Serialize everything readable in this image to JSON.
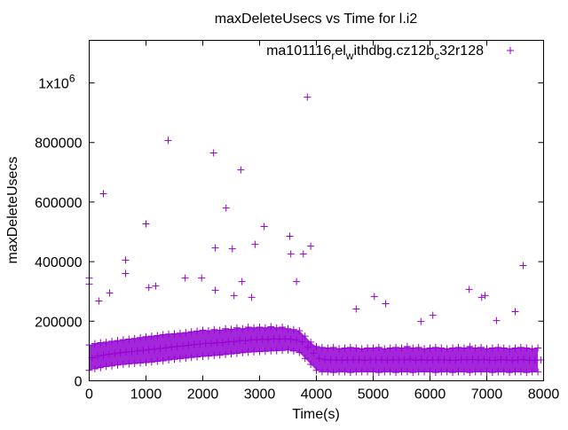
{
  "chart_data": {
    "type": "scatter",
    "title": "maxDeleteUsecs vs Time for l.i2",
    "xlabel": "Time(s)",
    "ylabel": "maxDeleteUsecs",
    "xlim": [
      0,
      8000
    ],
    "ylim": [
      0,
      1143000
    ],
    "grid": false,
    "legend_placement": "top-right",
    "color": "#9400d3",
    "x_ticks": [
      {
        "value": 0,
        "label": "0"
      },
      {
        "value": 1000,
        "label": "1000"
      },
      {
        "value": 2000,
        "label": "2000"
      },
      {
        "value": 3000,
        "label": "3000"
      },
      {
        "value": 4000,
        "label": "4000"
      },
      {
        "value": 5000,
        "label": "5000"
      },
      {
        "value": 6000,
        "label": "6000"
      },
      {
        "value": 7000,
        "label": "7000"
      },
      {
        "value": 8000,
        "label": "8000"
      }
    ],
    "y_ticks": [
      {
        "value": 0,
        "label": "0"
      },
      {
        "value": 200000,
        "label": "200000"
      },
      {
        "value": 400000,
        "label": "400000"
      },
      {
        "value": 600000,
        "label": "600000"
      },
      {
        "value": 800000,
        "label": "800000"
      },
      {
        "value": 1000000,
        "label": "1x10",
        "sup": "6"
      }
    ],
    "series": [
      {
        "name": "ma101116_rel_withdbg.cz12b_c32r128",
        "legend_parts": [
          {
            "text": "ma101116",
            "sub": false
          },
          {
            "text": "r",
            "sub": true
          },
          {
            "text": "el",
            "sub": false
          },
          {
            "text": "w",
            "sub": true
          },
          {
            "text": "ithdbg.cz12b",
            "sub": false
          },
          {
            "text": "c",
            "sub": true
          },
          {
            "text": "32r128",
            "sub": false
          }
        ],
        "band": {
          "x_start": 0,
          "x_step": 100,
          "low_k": [
            35,
            40,
            44,
            48,
            50,
            53,
            55,
            57,
            58,
            60,
            61,
            63,
            65,
            67,
            70,
            72,
            74,
            76,
            78,
            80,
            82,
            83,
            85,
            86,
            88,
            90,
            92,
            94,
            96,
            97,
            98,
            99,
            100,
            101,
            102,
            103,
            100,
            95,
            75,
            55,
            35,
            30,
            30,
            28,
            30,
            30,
            28,
            30,
            30,
            30,
            30,
            28,
            30,
            30,
            28,
            30,
            30,
            28,
            30,
            30,
            30,
            28,
            30,
            30,
            28,
            30,
            30,
            28,
            30,
            30,
            30,
            28,
            30,
            30,
            28,
            30,
            30,
            28,
            30,
            30
          ],
          "high_k": [
            120,
            125,
            128,
            130,
            133,
            135,
            138,
            140,
            142,
            145,
            148,
            150,
            152,
            155,
            157,
            158,
            160,
            162,
            165,
            167,
            170,
            168,
            172,
            170,
            175,
            173,
            178,
            175,
            180,
            178,
            180,
            178,
            182,
            178,
            180,
            175,
            172,
            168,
            150,
            130,
            115,
            112,
            110,
            112,
            108,
            110,
            112,
            110,
            108,
            110,
            110,
            112,
            108,
            110,
            112,
            110,
            115,
            110,
            112,
            108,
            110,
            112,
            110,
            108,
            110,
            112,
            110,
            115,
            110,
            112,
            108,
            110,
            112,
            110,
            108,
            110,
            112,
            110,
            108,
            110
          ]
        },
        "outliers": [
          [
            0,
            345000
          ],
          [
            0,
            325000
          ],
          [
            170,
            268000
          ],
          [
            250,
            628000
          ],
          [
            360,
            295000
          ],
          [
            640,
            405000
          ],
          [
            640,
            360000
          ],
          [
            1000,
            527000
          ],
          [
            1050,
            313000
          ],
          [
            1170,
            318000
          ],
          [
            1390,
            807000
          ],
          [
            1690,
            345000
          ],
          [
            1980,
            345000
          ],
          [
            2190,
            765000
          ],
          [
            2220,
            446000
          ],
          [
            2220,
            304000
          ],
          [
            2410,
            580000
          ],
          [
            2520,
            443000
          ],
          [
            2550,
            286000
          ],
          [
            2670,
            708000
          ],
          [
            2690,
            333000
          ],
          [
            2860,
            280000
          ],
          [
            2920,
            458000
          ],
          [
            3080,
            518000
          ],
          [
            3530,
            485000
          ],
          [
            3550,
            426000
          ],
          [
            3650,
            333000
          ],
          [
            3770,
            426000
          ],
          [
            3840,
            952000
          ],
          [
            3900,
            452000
          ],
          [
            4700,
            241000
          ],
          [
            5020,
            283000
          ],
          [
            5220,
            259000
          ],
          [
            5840,
            199000
          ],
          [
            6050,
            220000
          ],
          [
            6690,
            307000
          ],
          [
            6910,
            280000
          ],
          [
            6970,
            286000
          ],
          [
            7170,
            202000
          ],
          [
            7500,
            232000
          ],
          [
            7640,
            387000
          ]
        ]
      }
    ]
  }
}
